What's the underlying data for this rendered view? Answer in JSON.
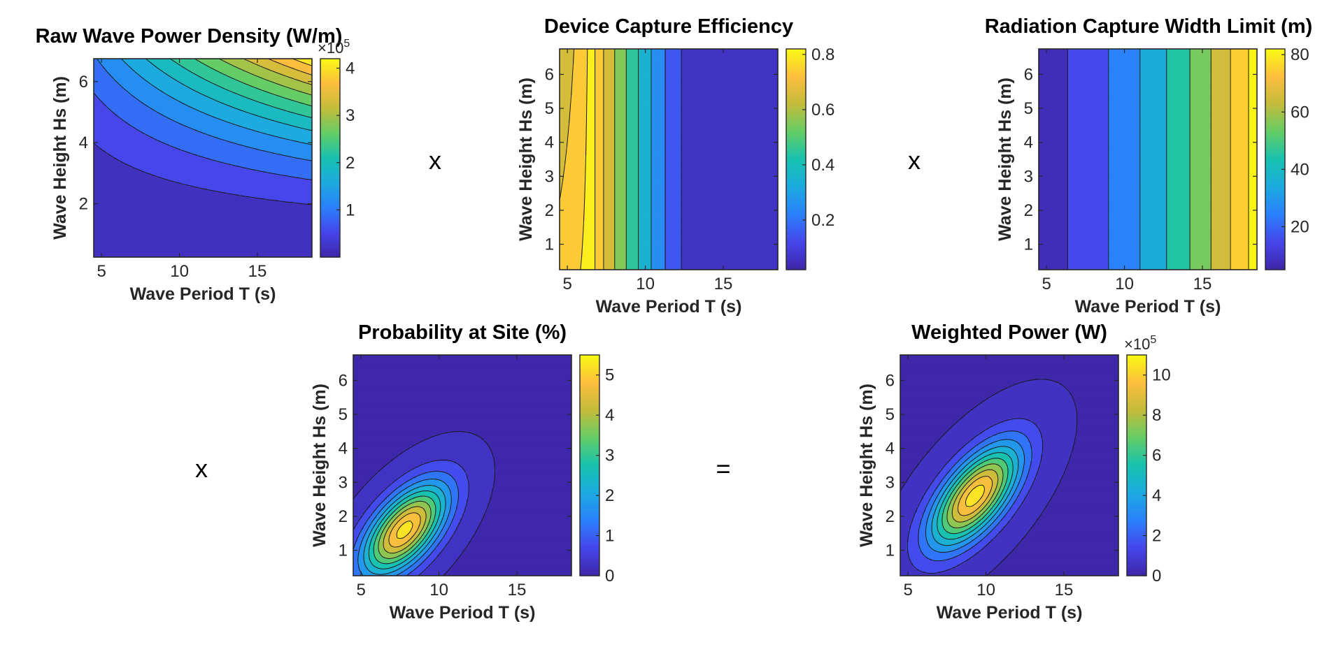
{
  "figure": {
    "operators": [
      "x",
      "x",
      "x",
      "="
    ]
  },
  "chart_data": [
    {
      "type": "contour",
      "title": "Raw Wave Power Density (W/m)",
      "xlabel": "Wave Period T (s)",
      "ylabel": "Wave Height Hs (m)",
      "xlim": [
        4.5,
        18.5
      ],
      "ylim": [
        0.25,
        6.75
      ],
      "xticks": [
        5,
        10,
        15
      ],
      "yticks": [
        2,
        4,
        6
      ],
      "colorbar": {
        "range": [
          0,
          4.2
        ],
        "ticks": [
          1,
          2,
          3,
          4
        ],
        "multiplier": "×10^5"
      },
      "field": {
        "kind": "power",
        "formula": "0.0049 * Hs^2 * T  (×10^5 W/m)"
      },
      "levels": [
        0.35,
        0.7,
        1.05,
        1.4,
        1.75,
        2.1,
        2.45,
        2.8,
        3.15,
        3.5,
        3.85
      ]
    },
    {
      "type": "contour",
      "title": "Device Capture Efficiency",
      "xlabel": "Wave Period T (s)",
      "ylabel": "Wave Height Hs (m)",
      "xlim": [
        4.5,
        18.5
      ],
      "ylim": [
        0.25,
        6.75
      ],
      "xticks": [
        5,
        10,
        15
      ],
      "yticks": [
        1,
        2,
        3,
        4,
        5,
        6
      ],
      "colorbar": {
        "range": [
          0.02,
          0.82
        ],
        "ticks": [
          0.2,
          0.4,
          0.6,
          0.8
        ],
        "multiplier": ""
      },
      "field": {
        "kind": "efficiency",
        "peak_period_s": 6.5,
        "peak_value": 0.8,
        "decay_to_s": 13.5
      },
      "levels": [
        0.1,
        0.2,
        0.3,
        0.4,
        0.5,
        0.6,
        0.7,
        0.78
      ]
    },
    {
      "type": "contour",
      "title": "Radiation Capture Width Limit (m)",
      "xlabel": "Wave Period T (s)",
      "ylabel": "Wave Height Hs (m)",
      "xlim": [
        4.5,
        18.5
      ],
      "ylim": [
        0.25,
        6.75
      ],
      "xticks": [
        5,
        10,
        15
      ],
      "yticks": [
        1,
        2,
        3,
        4,
        5,
        6
      ],
      "colorbar": {
        "range": [
          5,
          82
        ],
        "ticks": [
          20,
          40,
          60,
          80
        ],
        "multiplier": ""
      },
      "field": {
        "kind": "captureWidth",
        "formula": "0.248 * T^2 (m)"
      },
      "levels": [
        10,
        20,
        30,
        40,
        50,
        60,
        70,
        80
      ]
    },
    {
      "type": "contour",
      "title": "Probability at Site (%)",
      "xlabel": "Wave Period T (s)",
      "ylabel": "Wave Height Hs (m)",
      "xlim": [
        4.5,
        18.5
      ],
      "ylim": [
        0.25,
        6.75
      ],
      "xticks": [
        5,
        10,
        15
      ],
      "yticks": [
        1,
        2,
        3,
        4,
        5,
        6
      ],
      "colorbar": {
        "range": [
          0,
          5.5
        ],
        "ticks": [
          0,
          1,
          2,
          3,
          4,
          5
        ],
        "multiplier": ""
      },
      "field": {
        "kind": "gauss",
        "peak": 5.2,
        "center_T": 7.8,
        "center_Hs": 1.6,
        "sigma_T": 1.9,
        "sigma_Hs": 0.95,
        "rho": 0.6
      },
      "levels": [
        0.05,
        0.5,
        1.0,
        1.5,
        2.0,
        2.5,
        3.0,
        3.5,
        4.0,
        4.5,
        5.0
      ]
    },
    {
      "type": "contour",
      "title": "Weighted Power (W)",
      "xlabel": "Wave Period T (s)",
      "ylabel": "Wave Height Hs (m)",
      "xlim": [
        4.5,
        18.5
      ],
      "ylim": [
        0.25,
        6.75
      ],
      "xticks": [
        5,
        10,
        15
      ],
      "yticks": [
        1,
        2,
        3,
        4,
        5,
        6
      ],
      "colorbar": {
        "range": [
          0,
          11
        ],
        "ticks": [
          0,
          2,
          4,
          6,
          8,
          10
        ],
        "multiplier": "×10^5"
      },
      "field": {
        "kind": "gauss",
        "peak": 10.5,
        "center_T": 9.3,
        "center_Hs": 2.6,
        "sigma_T": 2.0,
        "sigma_Hs": 1.05,
        "rho": 0.65
      },
      "levels": [
        0.05,
        1,
        2,
        3,
        4,
        5,
        6,
        7,
        8,
        9,
        10
      ]
    }
  ]
}
